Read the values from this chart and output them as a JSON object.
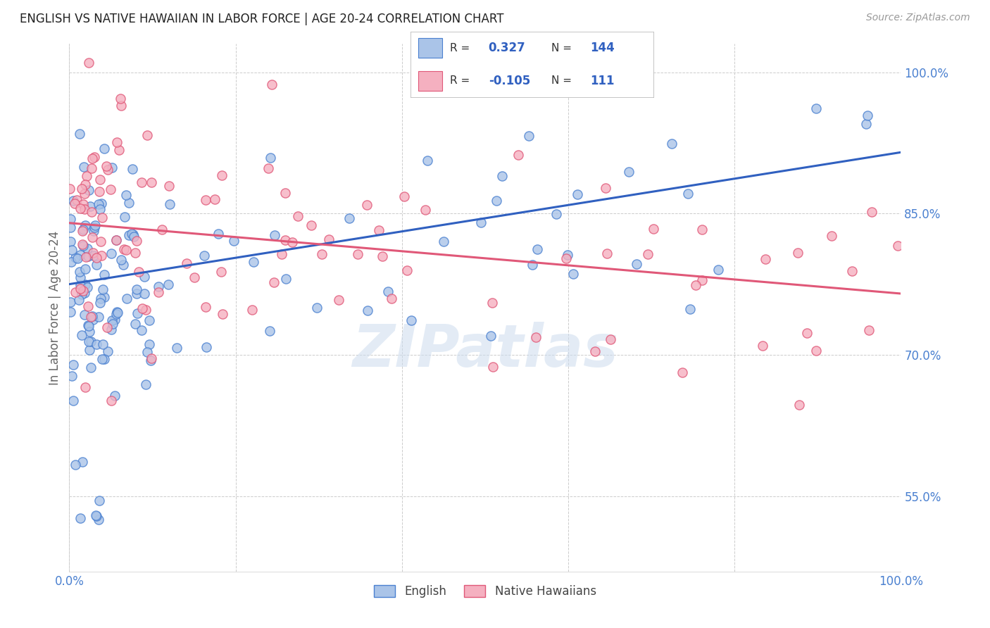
{
  "title": "ENGLISH VS NATIVE HAWAIIAN IN LABOR FORCE | AGE 20-24 CORRELATION CHART",
  "source": "Source: ZipAtlas.com",
  "ylabel": "In Labor Force | Age 20-24",
  "xlim": [
    0.0,
    1.0
  ],
  "ylim": [
    0.47,
    1.03
  ],
  "yticks": [
    0.55,
    0.7,
    0.85,
    1.0
  ],
  "ytick_labels": [
    "55.0%",
    "70.0%",
    "85.0%",
    "100.0%"
  ],
  "xtick_labels": [
    "0.0%",
    "",
    "",
    "",
    "",
    "100.0%"
  ],
  "legend_english_R": "0.327",
  "legend_english_N": "144",
  "legend_native_R": "-0.105",
  "legend_native_N": "111",
  "english_face_color": "#aac4e8",
  "native_face_color": "#f5b0c0",
  "english_edge_color": "#4a80d0",
  "native_edge_color": "#e05878",
  "english_line_color": "#3060c0",
  "native_line_color": "#e05878",
  "watermark": "ZIPatlas",
  "background_color": "#ffffff",
  "grid_color": "#cccccc",
  "title_color": "#222222",
  "axis_tick_color": "#4a80d0",
  "ylabel_color": "#666666"
}
